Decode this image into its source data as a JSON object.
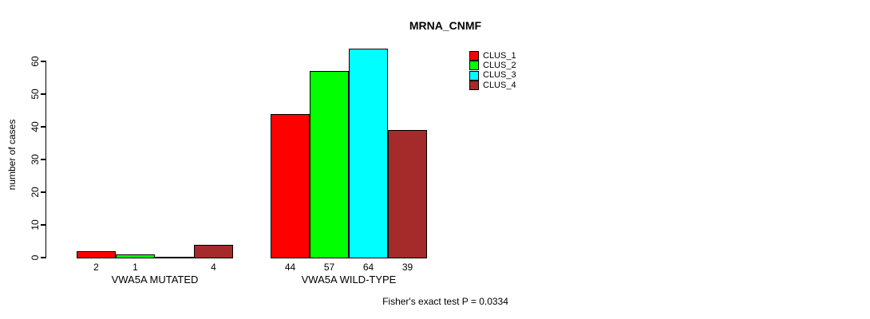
{
  "title": "MRNA_CNMF",
  "footer": "Fisher's exact test P = 0.0334",
  "chart_data": {
    "type": "bar",
    "title": "MRNA_CNMF",
    "xlabel": "",
    "ylabel": "number of cases",
    "ylim": [
      0,
      65
    ],
    "yticks": [
      0,
      10,
      20,
      30,
      40,
      50,
      60
    ],
    "grid": false,
    "legend_position": "top-right",
    "annotation": "Fisher's exact test P = 0.0334",
    "categories": [
      "VWA5A MUTATED",
      "VWA5A WILD-TYPE"
    ],
    "series": [
      {
        "name": "CLUS_1",
        "color": "#FF0000"
      },
      {
        "name": "CLUS_2",
        "color": "#00FF00"
      },
      {
        "name": "CLUS_3",
        "color": "#00FFFF"
      },
      {
        "name": "CLUS_4",
        "color": "#A52A2A"
      }
    ],
    "groups": [
      {
        "label": "VWA5A MUTATED",
        "values": [
          2,
          1,
          0,
          4
        ],
        "bar_labels": [
          "2",
          "1",
          "",
          "4"
        ]
      },
      {
        "label": "VWA5A WILD-TYPE",
        "values": [
          44,
          57,
          64,
          39
        ],
        "bar_labels": [
          "44",
          "57",
          "64",
          "39"
        ]
      }
    ],
    "axis_color": "#000000",
    "bar_border_color": "#000000"
  }
}
